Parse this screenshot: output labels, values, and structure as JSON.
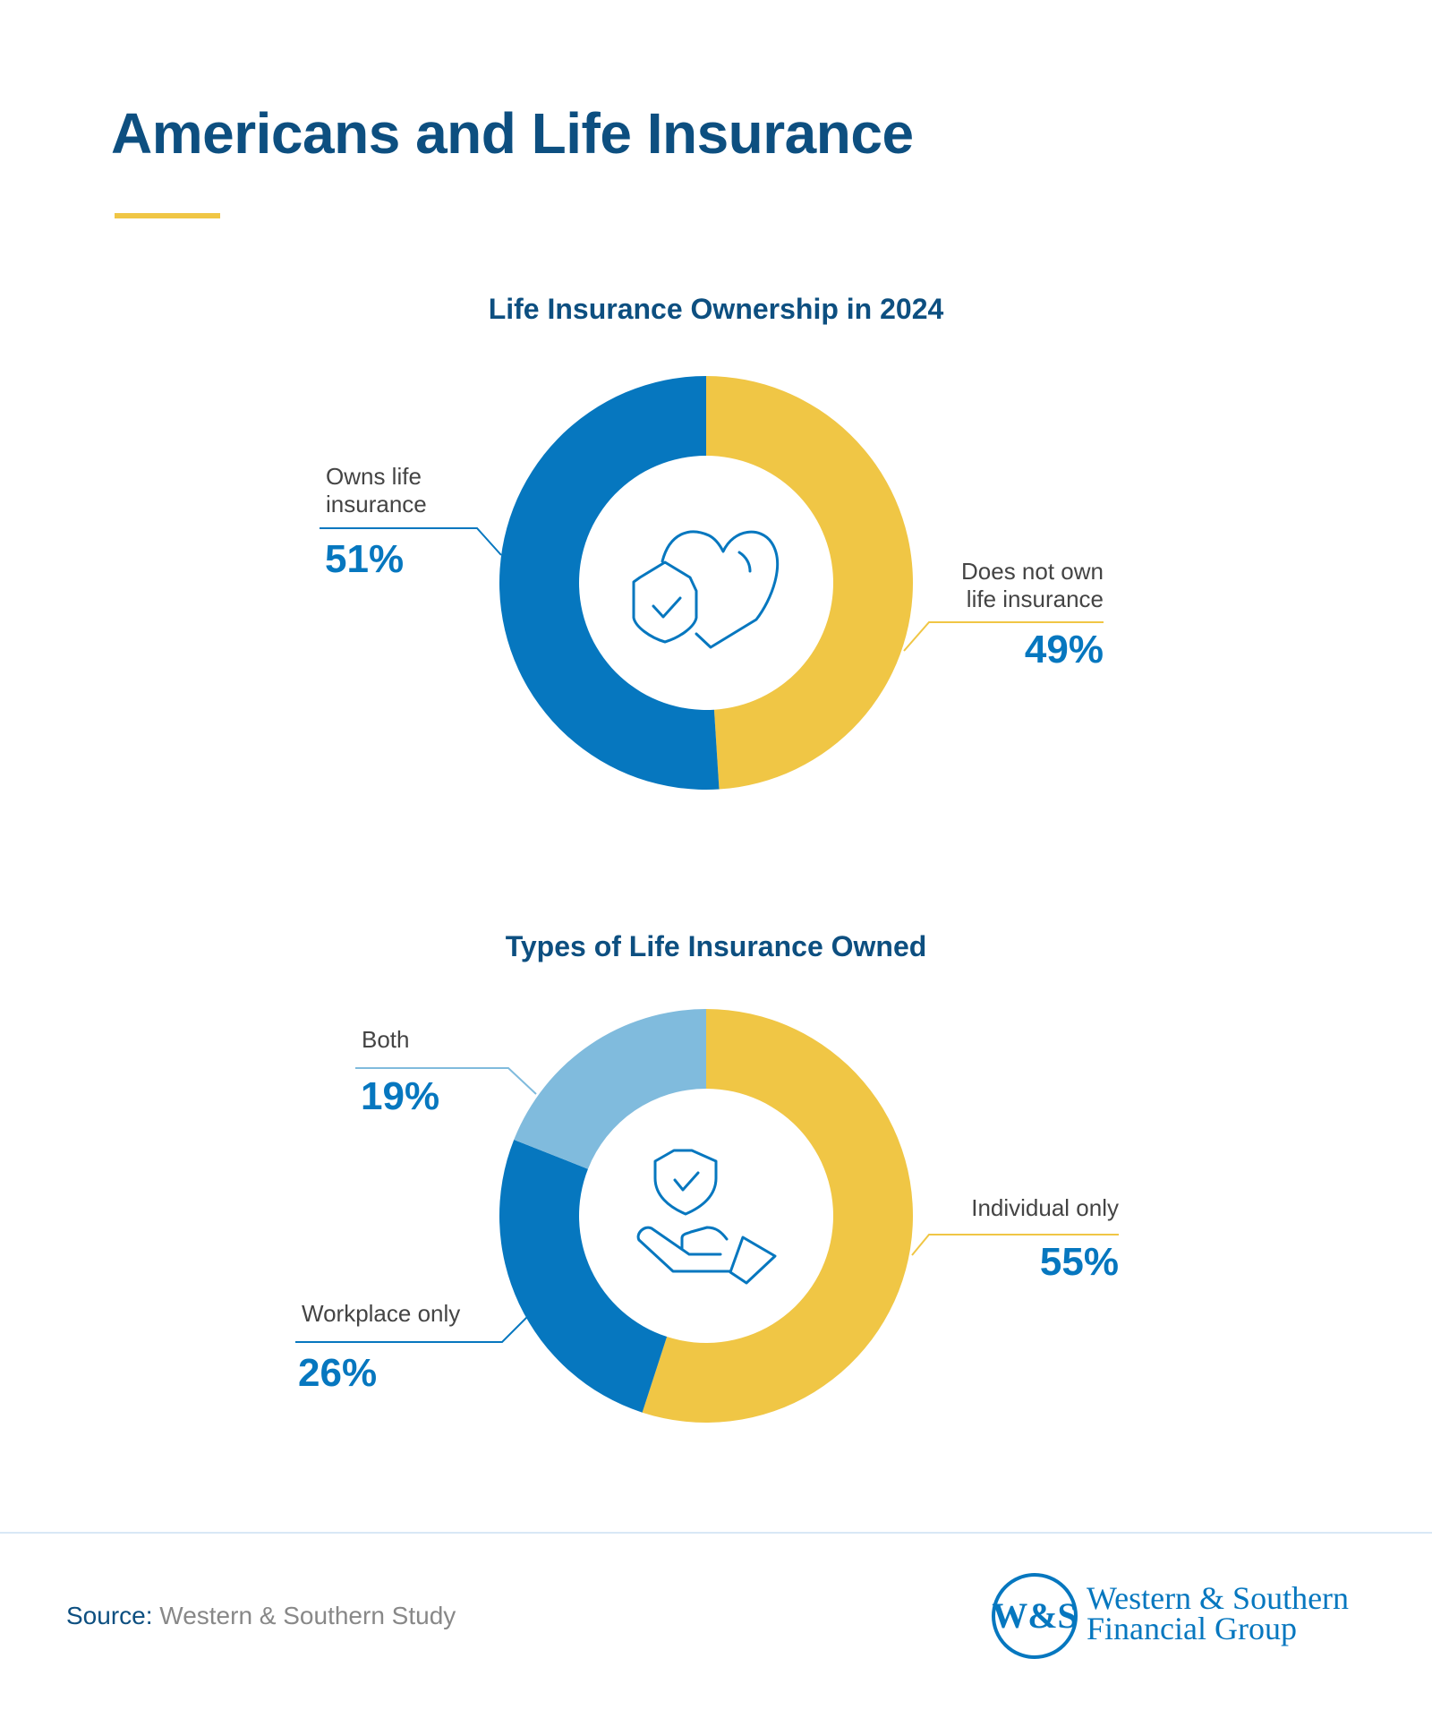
{
  "title": "Americans and Life Insurance",
  "colors": {
    "navy": "#0d4f80",
    "blue": "#0677bf",
    "yellow": "#f0c645",
    "light_blue": "#80bbdd"
  },
  "chart_data": [
    {
      "type": "pie",
      "variant": "donut",
      "title": "Life Insurance Ownership in 2024",
      "center_icon": "shield-heart-icon",
      "slices": [
        {
          "label": "Does not own life insurance",
          "value": 49,
          "value_label": "49%",
          "color": "#f0c645"
        },
        {
          "label": "Owns life insurance",
          "value": 51,
          "value_label": "51%",
          "color": "#0677bf"
        }
      ]
    },
    {
      "type": "pie",
      "variant": "donut",
      "title": "Types of Life Insurance Owned",
      "center_icon": "hand-shield-icon",
      "slices": [
        {
          "label": "Individual only",
          "value": 55,
          "value_label": "55%",
          "color": "#f0c645"
        },
        {
          "label": "Workplace only",
          "value": 26,
          "value_label": "26%",
          "color": "#0677bf"
        },
        {
          "label": "Both",
          "value": 19,
          "value_label": "19%",
          "color": "#80bbdd"
        }
      ]
    }
  ],
  "labels": {
    "owns_line1": "Owns life",
    "owns_line2": "insurance",
    "not_own_line1": "Does not own",
    "not_own_line2": "life insurance"
  },
  "footer": {
    "source_key": "Source:",
    "source_value": "Western & Southern Study",
    "logo_line1": "Western & Southern",
    "logo_line2": "Financial Group",
    "logo_mark": "W&S"
  }
}
